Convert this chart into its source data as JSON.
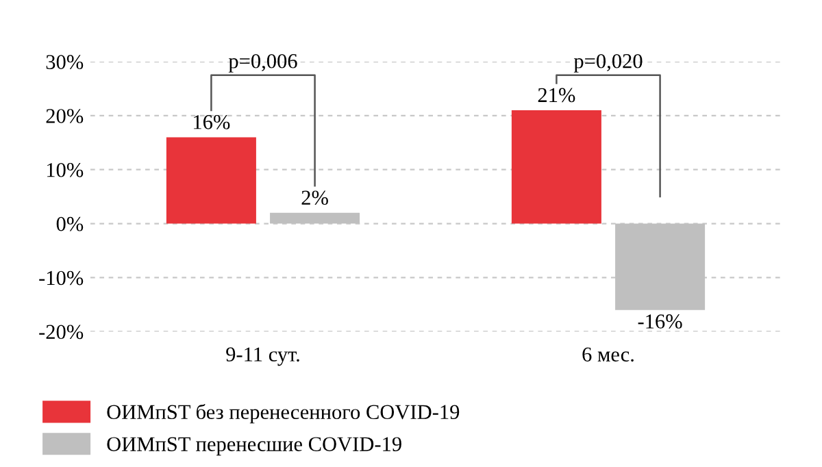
{
  "chart_data": {
    "type": "bar",
    "categories": [
      "9-11 сут.",
      "6 мес."
    ],
    "series": [
      {
        "name": "ОИМпST без перенесенного COVID-19",
        "color": "#e8343a",
        "values": [
          16,
          21
        ],
        "value_labels": [
          "16%",
          "21%"
        ]
      },
      {
        "name": "ОИМпST перенесшие COVID-19",
        "color": "#bfbfbf",
        "values": [
          2,
          -16
        ],
        "value_labels": [
          "2%",
          "-16%"
        ]
      }
    ],
    "ylim": [
      -20,
      30
    ],
    "yticks": [
      {
        "value": -20,
        "label": "-20%"
      },
      {
        "value": -10,
        "label": "-10%"
      },
      {
        "value": 0,
        "label": "0%"
      },
      {
        "value": 10,
        "label": "10%"
      },
      {
        "value": 20,
        "label": "20%"
      },
      {
        "value": 30,
        "label": "30%"
      }
    ],
    "grid": "y",
    "legend": "bottom",
    "annotations": [
      "p=0,006",
      "p=0,020"
    ]
  }
}
